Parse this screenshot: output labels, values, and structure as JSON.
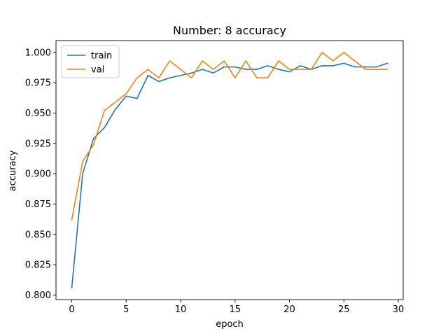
{
  "chart_data": {
    "type": "line",
    "title": "Number: 8 accuracy",
    "xlabel": "epoch",
    "ylabel": "accuracy",
    "xlim": [
      -1.45,
      30.45
    ],
    "ylim": [
      0.7963,
      1.0097
    ],
    "xticks": [
      0,
      5,
      10,
      15,
      20,
      25,
      30
    ],
    "yticks": [
      0.8,
      0.825,
      0.85,
      0.875,
      0.9,
      0.925,
      0.95,
      0.975,
      1.0
    ],
    "ytick_labels": [
      "0.800",
      "0.825",
      "0.850",
      "0.875",
      "0.900",
      "0.925",
      "0.950",
      "0.975",
      "1.000"
    ],
    "grid": false,
    "legend_position": "upper-left",
    "x": [
      0,
      1,
      2,
      3,
      4,
      5,
      6,
      7,
      8,
      9,
      10,
      11,
      12,
      13,
      14,
      15,
      16,
      17,
      18,
      19,
      20,
      21,
      22,
      23,
      24,
      25,
      26,
      27,
      28,
      29
    ],
    "series": [
      {
        "name": "train",
        "color": "#1f77b4",
        "values": [
          0.806,
          0.9,
          0.929,
          0.938,
          0.953,
          0.964,
          0.962,
          0.981,
          0.976,
          0.979,
          0.981,
          0.983,
          0.986,
          0.983,
          0.988,
          0.988,
          0.986,
          0.986,
          0.989,
          0.986,
          0.984,
          0.989,
          0.986,
          0.989,
          0.989,
          0.991,
          0.988,
          0.988,
          0.988,
          0.991
        ]
      },
      {
        "name": "val",
        "color": "#ff7f0e",
        "values": [
          0.862,
          0.91,
          0.924,
          0.952,
          0.959,
          0.966,
          0.979,
          0.986,
          0.979,
          0.993,
          0.986,
          0.979,
          0.993,
          0.986,
          0.993,
          0.979,
          0.993,
          0.979,
          0.979,
          0.993,
          0.986,
          0.986,
          0.986,
          1.0,
          0.993,
          1.0,
          0.993,
          0.986,
          0.986,
          0.986
        ]
      }
    ]
  }
}
